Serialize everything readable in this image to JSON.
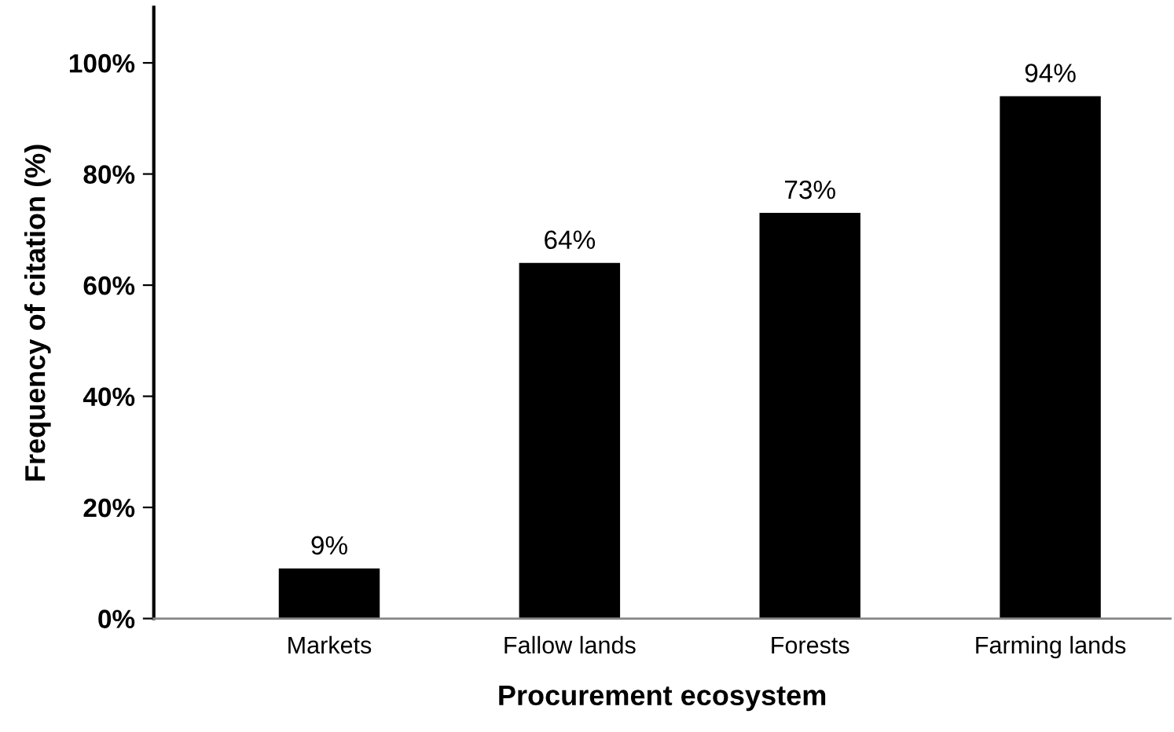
{
  "chart_data": {
    "type": "bar",
    "xlabel": "Procurement ecosystem",
    "ylabel": "Frequency of citation (%)",
    "categories": [
      "Markets",
      "Fallow lands",
      "Forests",
      "Farming lands"
    ],
    "values": [
      9,
      64,
      73,
      94
    ],
    "color": "#000000",
    "value_labels": [
      "9%",
      "64%",
      "73%",
      "94%"
    ],
    "ylim": [
      0,
      110
    ],
    "yticks": [
      {
        "value": 0,
        "label": "0%"
      },
      {
        "value": 20,
        "label": "20%"
      },
      {
        "value": 40,
        "label": "40%"
      },
      {
        "value": 60,
        "label": "60%"
      },
      {
        "value": 80,
        "label": "80%"
      },
      {
        "value": 100,
        "label": "100%"
      }
    ],
    "grid": false,
    "legend": false
  }
}
